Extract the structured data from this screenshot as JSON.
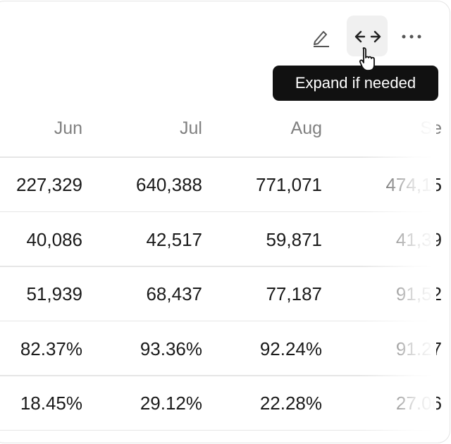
{
  "tooltip": "Expand if needed",
  "table": {
    "columns": [
      "Jun",
      "Jul",
      "Aug",
      "Se"
    ],
    "rows": [
      [
        "227,329",
        "640,388",
        "771,071",
        "474,15"
      ],
      [
        "40,086",
        "42,517",
        "59,871",
        "41,39"
      ],
      [
        "51,939",
        "68,437",
        "77,187",
        "91,52"
      ],
      [
        "82.37%",
        "93.36%",
        "92.24%",
        "91.27"
      ],
      [
        "18.45%",
        "29.12%",
        "22.28%",
        "27.06"
      ]
    ]
  }
}
